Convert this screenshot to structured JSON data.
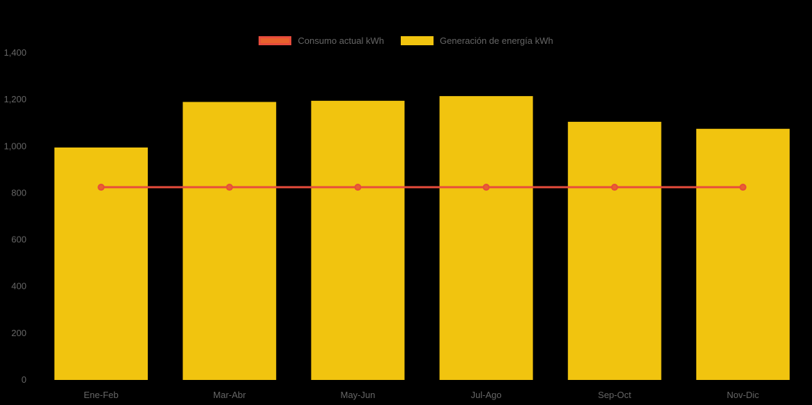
{
  "app": {
    "background": "#000000",
    "text_color": "#666666"
  },
  "chart_data": {
    "type": "bar",
    "categories": [
      "Ene-Feb",
      "Mar-Abr",
      "May-Jun",
      "Jul-Ago",
      "Sep-Oct",
      "Nov-Dic"
    ],
    "series": [
      {
        "name": "Consumo actual kWh",
        "type": "line",
        "color": "#e74c3c",
        "point_fill": "#e8622d",
        "values": [
          825,
          825,
          825,
          825,
          825,
          825
        ]
      },
      {
        "name": "Generación de energía kWh",
        "type": "bar",
        "color": "#f1c40f",
        "values": [
          995,
          1190,
          1195,
          1215,
          1105,
          1075
        ]
      }
    ],
    "title": "",
    "xlabel": "",
    "ylabel": "",
    "ylim": [
      0,
      1400
    ],
    "ytick_step": 200,
    "ytick_labels": [
      "0",
      "200",
      "400",
      "600",
      "800",
      "1,000",
      "1,200",
      "1,400"
    ],
    "grid": false,
    "legend_position": "top"
  }
}
